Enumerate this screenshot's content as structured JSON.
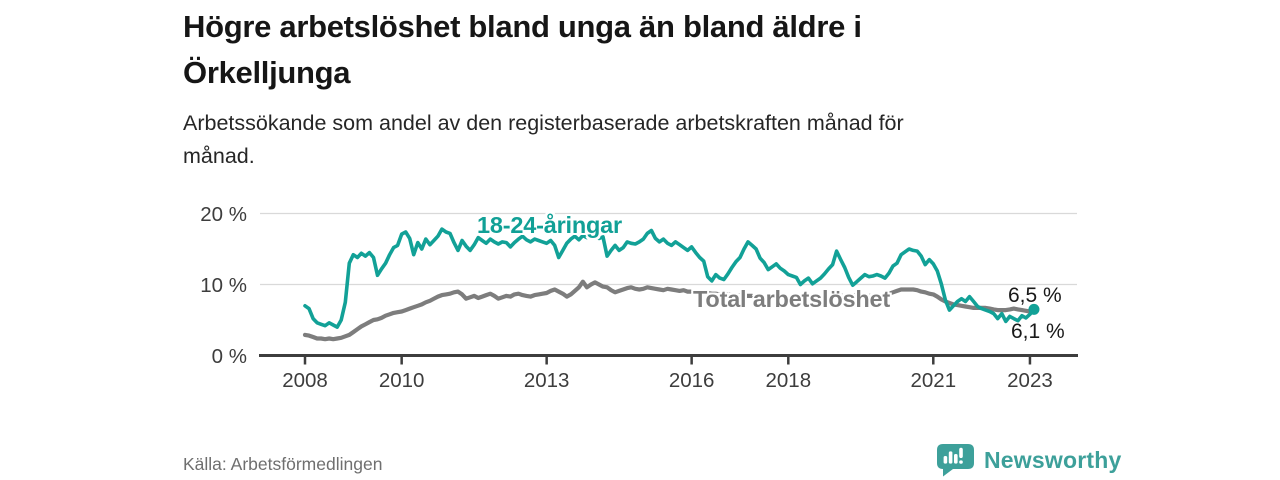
{
  "header": {
    "title": "Högre arbetslöshet bland unga än bland äldre i\nÖrkelljunga",
    "subtitle": "Arbetssökande som andel av den registerbaserade arbetskraften månad för\nmånad."
  },
  "footer": {
    "source": "Källa: Arbetsförmedlingen",
    "brand": "Newsworthy"
  },
  "colors": {
    "accent": "#12a197",
    "muted": "#7d7d7d",
    "grid": "#d9d9d9",
    "axis": "#3d3d3d",
    "brand": "#3da09a"
  },
  "chart_data": {
    "type": "line",
    "x_start": 2008,
    "frequency": "monthly",
    "x_ticks": [
      2008,
      2010,
      2013,
      2016,
      2018,
      2021,
      2023
    ],
    "y_ticks": [
      0,
      10,
      20
    ],
    "y_tick_format": "{v} %",
    "ylim": [
      0,
      21
    ],
    "grid": "horizontal",
    "legend_position": "inline-labels",
    "series": [
      {
        "name": "18-24-åringar",
        "color": "#12a197",
        "end_label": "6,5 %",
        "values": [
          7.0,
          6.6,
          5.2,
          4.6,
          4.4,
          4.2,
          4.6,
          4.3,
          4.0,
          5.0,
          7.5,
          13.0,
          14.2,
          13.8,
          14.4,
          14.0,
          14.5,
          13.8,
          11.3,
          12.2,
          13.0,
          14.2,
          15.2,
          15.5,
          17.1,
          17.4,
          16.5,
          14.2,
          15.9,
          15.0,
          16.4,
          15.6,
          16.2,
          16.8,
          17.8,
          17.4,
          17.2,
          15.9,
          14.8,
          16.2,
          15.4,
          14.8,
          15.6,
          16.6,
          16.2,
          15.8,
          16.4,
          16.0,
          15.7,
          16.0,
          15.9,
          15.3,
          15.9,
          16.4,
          16.8,
          16.3,
          16.0,
          16.4,
          16.2,
          16.0,
          15.8,
          16.2,
          15.5,
          13.8,
          14.8,
          15.8,
          16.4,
          16.8,
          16.3,
          16.9,
          16.6,
          16.8,
          16.9,
          16.5,
          16.7,
          14.0,
          14.8,
          15.5,
          14.8,
          15.2,
          16.0,
          15.8,
          15.7,
          16.0,
          16.4,
          17.2,
          17.6,
          16.5,
          16.0,
          16.4,
          15.8,
          15.5,
          16.0,
          15.6,
          15.2,
          14.8,
          15.3,
          14.5,
          13.8,
          13.3,
          11.1,
          10.5,
          11.4,
          10.9,
          10.7,
          11.5,
          12.4,
          13.2,
          13.8,
          15.0,
          16.0,
          15.5,
          15.0,
          13.7,
          13.1,
          12.1,
          12.5,
          12.9,
          12.3,
          11.9,
          11.4,
          11.2,
          11.0,
          10.0,
          10.5,
          10.9,
          10.1,
          10.5,
          10.9,
          11.5,
          12.2,
          12.8,
          14.7,
          13.5,
          12.4,
          11.0,
          9.9,
          10.4,
          10.9,
          11.4,
          11.1,
          11.2,
          11.4,
          11.2,
          10.9,
          11.6,
          12.6,
          13.0,
          14.2,
          14.6,
          15.0,
          14.8,
          14.7,
          14.0,
          12.8,
          13.5,
          12.9,
          11.9,
          10.1,
          7.8,
          6.4,
          7.0,
          7.6,
          8.0,
          7.6,
          8.3,
          7.6,
          6.9,
          6.6,
          6.4,
          6.2,
          5.9,
          5.2,
          5.9,
          4.8,
          5.5,
          5.2,
          4.9,
          5.6,
          5.3,
          5.8,
          6.5
        ]
      },
      {
        "name": "Total arbetslöshet",
        "color": "#7d7d7d",
        "end_label": "6,1 %",
        "values": [
          2.9,
          2.8,
          2.6,
          2.4,
          2.4,
          2.3,
          2.4,
          2.3,
          2.4,
          2.5,
          2.7,
          2.9,
          3.3,
          3.7,
          4.1,
          4.4,
          4.7,
          5.0,
          5.1,
          5.3,
          5.6,
          5.8,
          6.0,
          6.1,
          6.2,
          6.4,
          6.6,
          6.8,
          7.0,
          7.2,
          7.5,
          7.7,
          8.0,
          8.3,
          8.5,
          8.6,
          8.7,
          8.9,
          9.0,
          8.6,
          8.0,
          8.2,
          8.4,
          8.1,
          8.3,
          8.5,
          8.7,
          8.4,
          8.0,
          8.2,
          8.4,
          8.3,
          8.6,
          8.7,
          8.5,
          8.4,
          8.3,
          8.5,
          8.6,
          8.7,
          8.8,
          9.1,
          9.3,
          9.0,
          8.7,
          8.3,
          8.6,
          9.1,
          9.6,
          10.4,
          9.6,
          10.0,
          10.3,
          10.0,
          9.7,
          9.6,
          9.2,
          8.9,
          9.1,
          9.3,
          9.5,
          9.6,
          9.4,
          9.3,
          9.4,
          9.6,
          9.5,
          9.4,
          9.3,
          9.2,
          9.4,
          9.3,
          9.2,
          9.1,
          9.2,
          9.0,
          9.0,
          8.9,
          8.9,
          8.8,
          8.8,
          8.7,
          8.7,
          8.6,
          8.6,
          8.6,
          8.5,
          8.5,
          8.5,
          8.4,
          8.4,
          8.4,
          8.3,
          8.3,
          8.3,
          8.2,
          8.2,
          8.2,
          8.2,
          8.2,
          8.2,
          8.1,
          8.1,
          8.1,
          8.1,
          8.1,
          8.1,
          8.2,
          8.2,
          8.2,
          8.3,
          8.3,
          8.3,
          8.4,
          8.4,
          8.4,
          8.5,
          8.5,
          8.5,
          8.5,
          8.4,
          8.4,
          8.5,
          8.5,
          8.5,
          8.7,
          8.9,
          9.1,
          9.3,
          9.3,
          9.3,
          9.3,
          9.2,
          9.0,
          8.9,
          8.7,
          8.6,
          8.3,
          7.9,
          7.6,
          7.4,
          7.2,
          7.1,
          7.0,
          6.9,
          6.8,
          6.7,
          6.7,
          6.7,
          6.7,
          6.6,
          6.5,
          6.4,
          6.4,
          6.4,
          6.5,
          6.6,
          6.5,
          6.4,
          6.3,
          6.2,
          6.1
        ]
      }
    ]
  }
}
